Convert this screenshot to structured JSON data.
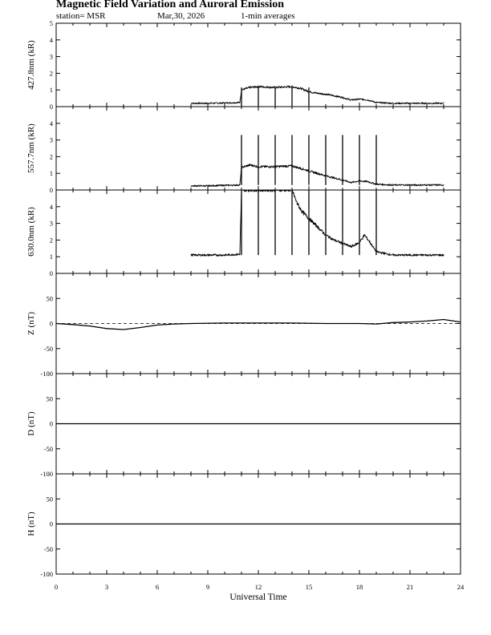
{
  "header": {
    "title": "Magnetic Field Variation and Auroral Emission",
    "station": "station= MSR",
    "date": "Mar,30, 2026",
    "averaging": "1-min averages"
  },
  "chart_data": [
    {
      "type": "line",
      "ylabel": "427.8nm (kR)",
      "ylim": [
        0,
        5
      ],
      "yticks": [
        0,
        1,
        2,
        3,
        4,
        5
      ],
      "series": [
        {
          "x": [
            8.0,
            9.0,
            10.0,
            10.9,
            11.0,
            11.5,
            12.0,
            13.0,
            14.0,
            14.5,
            15.0,
            15.5,
            16.0,
            17.0,
            17.5,
            18.0,
            18.5,
            19.0,
            20.0,
            21.0,
            22.0,
            23.0
          ],
          "y": [
            0.2,
            0.2,
            0.22,
            0.25,
            1.0,
            1.15,
            1.2,
            1.15,
            1.2,
            1.1,
            0.9,
            0.8,
            0.75,
            0.55,
            0.4,
            0.45,
            0.4,
            0.25,
            0.2,
            0.2,
            0.2,
            0.2
          ]
        }
      ],
      "spikes": [
        11,
        12,
        13,
        14,
        15
      ],
      "spike_to": 1.1
    },
    {
      "type": "line",
      "ylabel": "557.7nm (kR)",
      "ylim": [
        0,
        5
      ],
      "yticks": [
        0,
        1,
        2,
        3,
        4
      ],
      "series": [
        {
          "x": [
            8.0,
            9.0,
            10.0,
            10.9,
            11.0,
            11.5,
            12.0,
            13.0,
            14.0,
            14.5,
            15.0,
            15.5,
            16.0,
            17.0,
            17.5,
            18.0,
            18.5,
            19.0,
            20.0,
            21.0,
            22.0,
            23.0
          ],
          "y": [
            0.25,
            0.25,
            0.28,
            0.3,
            1.35,
            1.5,
            1.4,
            1.4,
            1.45,
            1.3,
            1.15,
            1.0,
            0.85,
            0.6,
            0.45,
            0.55,
            0.5,
            0.35,
            0.3,
            0.3,
            0.3,
            0.3
          ]
        }
      ],
      "spikes": [
        11,
        12,
        13,
        14,
        15,
        16,
        17,
        18,
        19
      ],
      "spike_to": 3.3
    },
    {
      "type": "line",
      "ylabel": "630.0nm (kR)",
      "ylim": [
        0,
        5
      ],
      "yticks": [
        0,
        1,
        2,
        3,
        4
      ],
      "series": [
        {
          "x": [
            8.0,
            9.0,
            10.0,
            10.9,
            11.0,
            12.0,
            13.0,
            14.0,
            14.3,
            14.6,
            15.0,
            15.5,
            16.0,
            16.5,
            17.0,
            17.5,
            18.0,
            18.3,
            18.6,
            19.0,
            20.0,
            21.0,
            22.0,
            23.0
          ],
          "y": [
            1.1,
            1.1,
            1.1,
            1.15,
            5.0,
            5.0,
            5.0,
            5.0,
            4.2,
            3.7,
            3.3,
            2.8,
            2.3,
            2.0,
            1.8,
            1.6,
            1.85,
            2.3,
            1.9,
            1.3,
            1.1,
            1.1,
            1.1,
            1.1
          ]
        }
      ],
      "spikes": [
        11,
        12,
        13,
        14,
        15,
        16,
        17,
        18,
        19
      ],
      "spike_to": 1.1
    },
    {
      "type": "line",
      "ylabel": "Z (nT)",
      "ylim": [
        -100,
        100
      ],
      "yticks": [
        -100,
        -50,
        0,
        50
      ],
      "ytick_labels": [
        "-100",
        "-50",
        "0",
        "50"
      ],
      "baseline": 0,
      "series": [
        {
          "x": [
            0,
            1,
            2,
            3,
            4,
            5,
            6,
            7,
            8,
            10,
            12,
            14,
            16,
            18,
            19,
            20,
            21,
            22,
            23,
            24
          ],
          "y": [
            0,
            -2,
            -5,
            -10,
            -12,
            -8,
            -3,
            -1,
            0,
            1,
            1,
            1,
            0,
            0,
            -1,
            2,
            3,
            5,
            8,
            3
          ]
        }
      ]
    },
    {
      "type": "line",
      "ylabel": "D (nT)",
      "ylim": [
        -100,
        100
      ],
      "yticks": [
        -100,
        -50,
        0,
        50
      ],
      "ytick_labels": [
        "-100",
        "-50",
        "0",
        "50"
      ],
      "baseline": 0,
      "series": [
        {
          "x": [
            0,
            24
          ],
          "y": [
            0,
            0
          ]
        }
      ]
    },
    {
      "type": "line",
      "ylabel": "H (nT)",
      "ylim": [
        -100,
        100
      ],
      "yticks": [
        -100,
        -50,
        0,
        50
      ],
      "ytick_labels": [
        "-100",
        "-50",
        "0",
        "50"
      ],
      "baseline": 0,
      "series": [
        {
          "x": [
            0,
            24
          ],
          "y": [
            0,
            0
          ]
        }
      ]
    }
  ],
  "x_axis": {
    "xlabel": "Universal Time",
    "xlim": [
      0,
      24
    ],
    "ticks": [
      0,
      3,
      6,
      9,
      12,
      15,
      18,
      21,
      24
    ]
  }
}
